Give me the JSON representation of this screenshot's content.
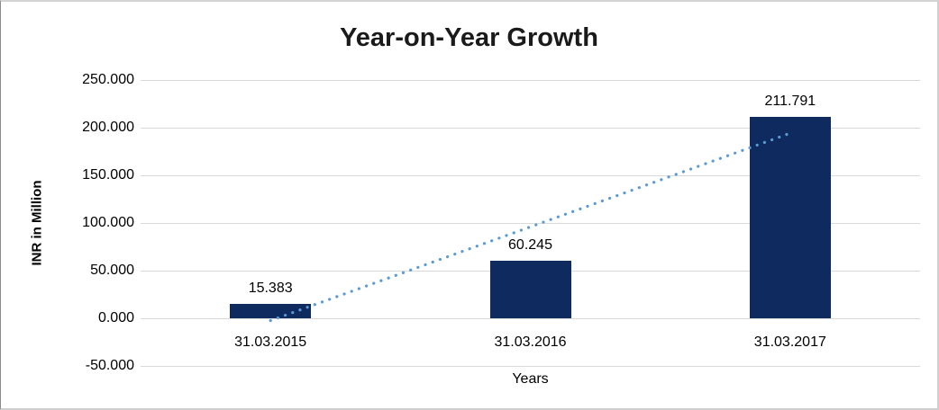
{
  "page": {
    "title": "Year-on-Year Growth"
  },
  "chart_data": {
    "type": "bar",
    "title": "Year-on-Year Growth",
    "xlabel": "Years",
    "ylabel": "INR in Million",
    "categories": [
      "31.03.2015",
      "31.03.2016",
      "31.03.2017"
    ],
    "values": [
      15.383,
      60.245,
      211.791
    ],
    "data_labels": [
      "15.383",
      "60.245",
      "211.791"
    ],
    "series_name": "INR in Million",
    "ylim": [
      -50,
      250
    ],
    "ytick_step": 50,
    "yticks": [
      {
        "value": 250,
        "label": "250.000"
      },
      {
        "value": 200,
        "label": "200.000"
      },
      {
        "value": 150,
        "label": "150.000"
      },
      {
        "value": 100,
        "label": "100.000"
      },
      {
        "value": 50,
        "label": "50.000"
      },
      {
        "value": 0,
        "label": "0.000"
      },
      {
        "value": -50,
        "label": "-50.000"
      }
    ],
    "grid": "horizontal",
    "legend": "none",
    "colors": {
      "bar": "#0e2a5e",
      "trendline": "#5b9bd5",
      "gridline": "#d9d9d9",
      "text": "#000000",
      "title": "#1a1a1a"
    },
    "trendline": {
      "type": "linear",
      "style": "dotted",
      "color": "#5b9bd5",
      "start_value": -2.4,
      "end_value": 194.2
    }
  }
}
